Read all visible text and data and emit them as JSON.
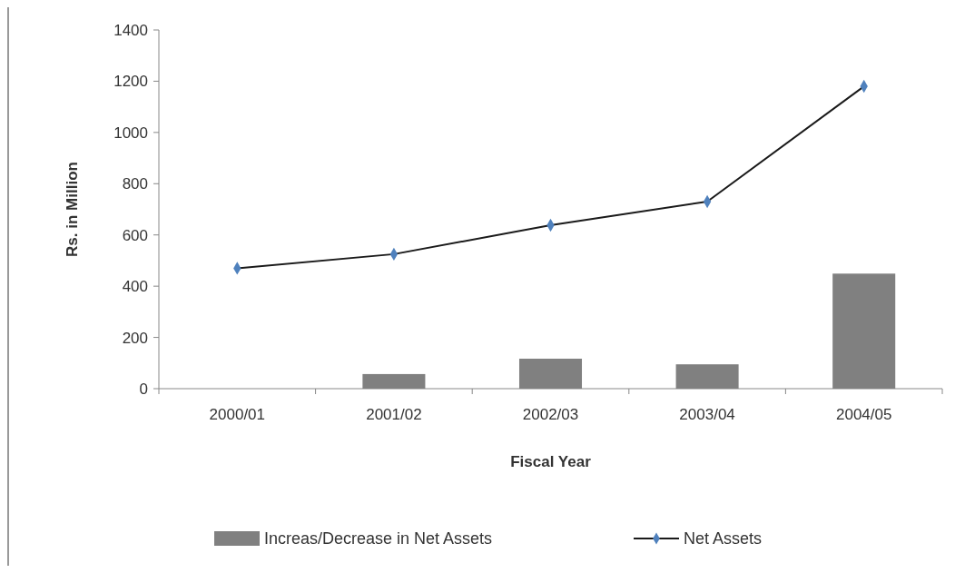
{
  "chart_data": {
    "type": "bar",
    "xlabel": "Fiscal Year",
    "ylabel": "Rs. in Million",
    "categories": [
      "2000/01",
      "2001/02",
      "2002/03",
      "2003/04",
      "2004/05"
    ],
    "series": [
      {
        "name": "Increas/Decrease in Net Assets",
        "color": "#808080",
        "values": [
          null,
          57,
          117,
          95,
          449
        ]
      },
      {
        "name": "Net Assets",
        "type": "line",
        "color": "#4f81bd",
        "values": [
          470,
          525,
          638,
          730,
          1180
        ]
      }
    ],
    "ylim": [
      0,
      1400
    ],
    "yticks": [
      0,
      200,
      400,
      600,
      800,
      1000,
      1200,
      1400
    ],
    "legend": "bottom",
    "marker": "diamond",
    "line_style": "solid"
  }
}
